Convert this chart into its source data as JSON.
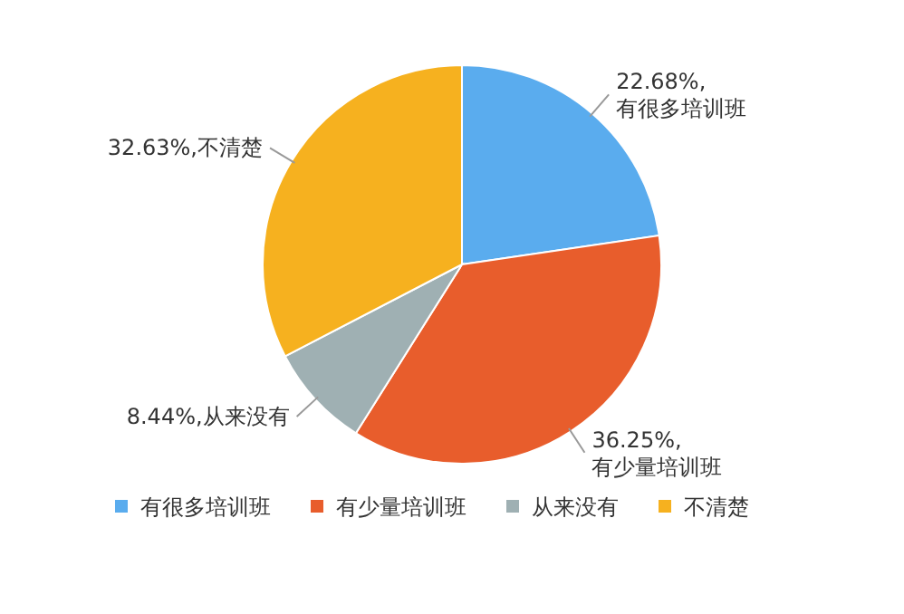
{
  "chart_data": {
    "type": "pie",
    "categories": [
      "有很多培训班",
      "有少量培训班",
      "从来没有",
      "不清楚"
    ],
    "values": [
      22.68,
      36.25,
      8.44,
      32.63
    ],
    "colors": [
      "#5aacee",
      "#e85d2c",
      "#9fb0b3",
      "#f6b11f"
    ],
    "value_labels": [
      "22.68%,有很多培训班",
      "36.25%,有少量培训班",
      "8.44%,从来没有",
      "32.63%,不清楚"
    ],
    "legend": "bottom"
  }
}
